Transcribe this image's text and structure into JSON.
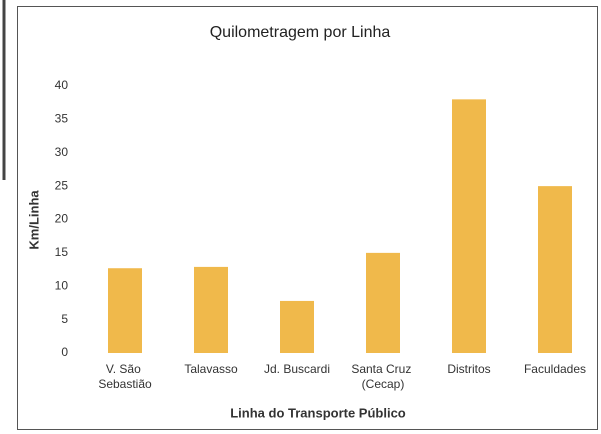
{
  "chart_data": {
    "type": "bar",
    "title": "Quilometragem por Linha",
    "x_label": "Linha do Transporte Público",
    "y_label": "Km/Linha",
    "categories": [
      "V. São Sebastião",
      "Talavasso",
      "Jd. Buscardi",
      "Santa Cruz (Cecap)",
      "Distritos",
      "Faculdades"
    ],
    "values": [
      12.7,
      12.9,
      7.8,
      15,
      38,
      25
    ],
    "color": "#f0b94b",
    "ylim": [
      0,
      40
    ],
    "yticks": [
      0,
      5,
      10,
      15,
      20,
      25,
      30,
      35,
      40
    ],
    "grid": false
  }
}
